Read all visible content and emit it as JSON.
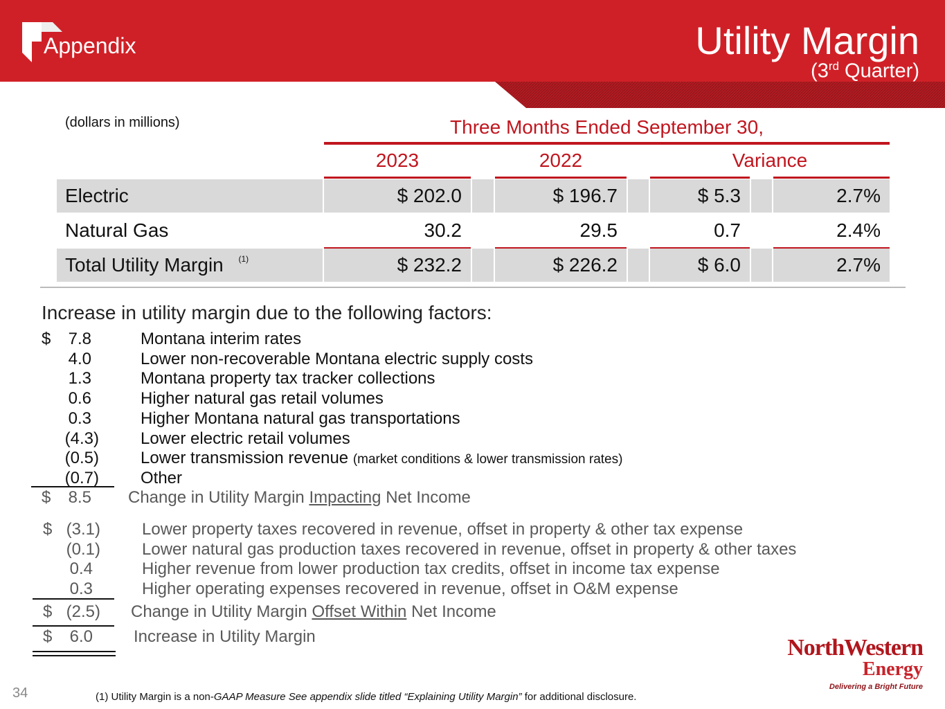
{
  "header": {
    "section": "Appendix",
    "title": "Utility Margin",
    "subtitle_open": "(3",
    "subtitle_sup": "rd",
    "subtitle_close": "Quarter)"
  },
  "table": {
    "units": "(dollars in millions)",
    "period": "Three Months Ended September 30,",
    "columns": [
      "2023",
      "2022",
      "Variance"
    ],
    "rows": [
      {
        "label": "Electric",
        "cells": [
          "$ 202.0",
          "$ 196.7",
          "$ 5.3",
          "2.7%"
        ]
      },
      {
        "label": "Natural Gas",
        "cells": [
          "30.2",
          "29.5",
          "0.7",
          "2.4%"
        ]
      },
      {
        "label": "Total Utility Margin",
        "note": "(1)",
        "cells": [
          "$ 232.2",
          "$ 226.2",
          "$ 6.0",
          "2.7%"
        ]
      }
    ]
  },
  "factors": {
    "heading": "Increase in utility margin due to the following factors:",
    "impacting": {
      "items": [
        {
          "sign": "$",
          "amount": "7.8",
          "label": "Montana interim rates"
        },
        {
          "amount": "4.0",
          "label": "Lower non-recoverable Montana electric supply costs"
        },
        {
          "amount": "1.3",
          "label": "Montana property tax tracker collections"
        },
        {
          "amount": "0.6",
          "label": "Higher natural gas retail volumes"
        },
        {
          "amount": "0.3",
          "label": "Higher Montana natural gas transportations"
        },
        {
          "amount": "(4.3)",
          "label": "Lower electric retail volumes"
        },
        {
          "amount": "(0.5)",
          "label": "Lower transmission revenue",
          "note": "(market conditions & lower transmission rates)"
        },
        {
          "amount": "(0.7)",
          "label": "Other"
        }
      ],
      "total": {
        "sign": "$",
        "amount": "8.5",
        "label_before": "Change in Utility Margin",
        "label_underlined": "Impacting",
        "label_after": "Net Income"
      }
    },
    "offset": {
      "items": [
        {
          "sign": "$",
          "amount": "(3.1)",
          "label": "Lower property taxes recovered in revenue, offset in property & other tax expense"
        },
        {
          "amount": "(0.1)",
          "label": "Lower natural gas production taxes recovered in revenue, offset in property & other taxes"
        },
        {
          "amount": "0.4",
          "label": "Higher revenue from lower production tax credits, offset in income tax expense"
        },
        {
          "amount": "0.3",
          "label": "Higher operating expenses recovered in revenue, offset in O&M expense"
        }
      ],
      "total": {
        "sign": "$",
        "amount": "(2.5)",
        "label_before": "Change in Utility Margin",
        "label_underlined": "Offset Within",
        "label_after": "Net Income"
      }
    },
    "grand_total": {
      "sign": "$",
      "amount": "6.0",
      "label": "Increase in Utility Margin"
    }
  },
  "footer": {
    "page": "34",
    "note_start": "(1) Utility Margin is a non-",
    "note_italic": "GAAP Measure  See appendix slide titled “Explaining Utility Margin”",
    "note_end": "for additional disclosure."
  },
  "logo": {
    "name": "NorthWestern",
    "sub": "Energy",
    "tagline": "Delivering a Bright Future"
  }
}
